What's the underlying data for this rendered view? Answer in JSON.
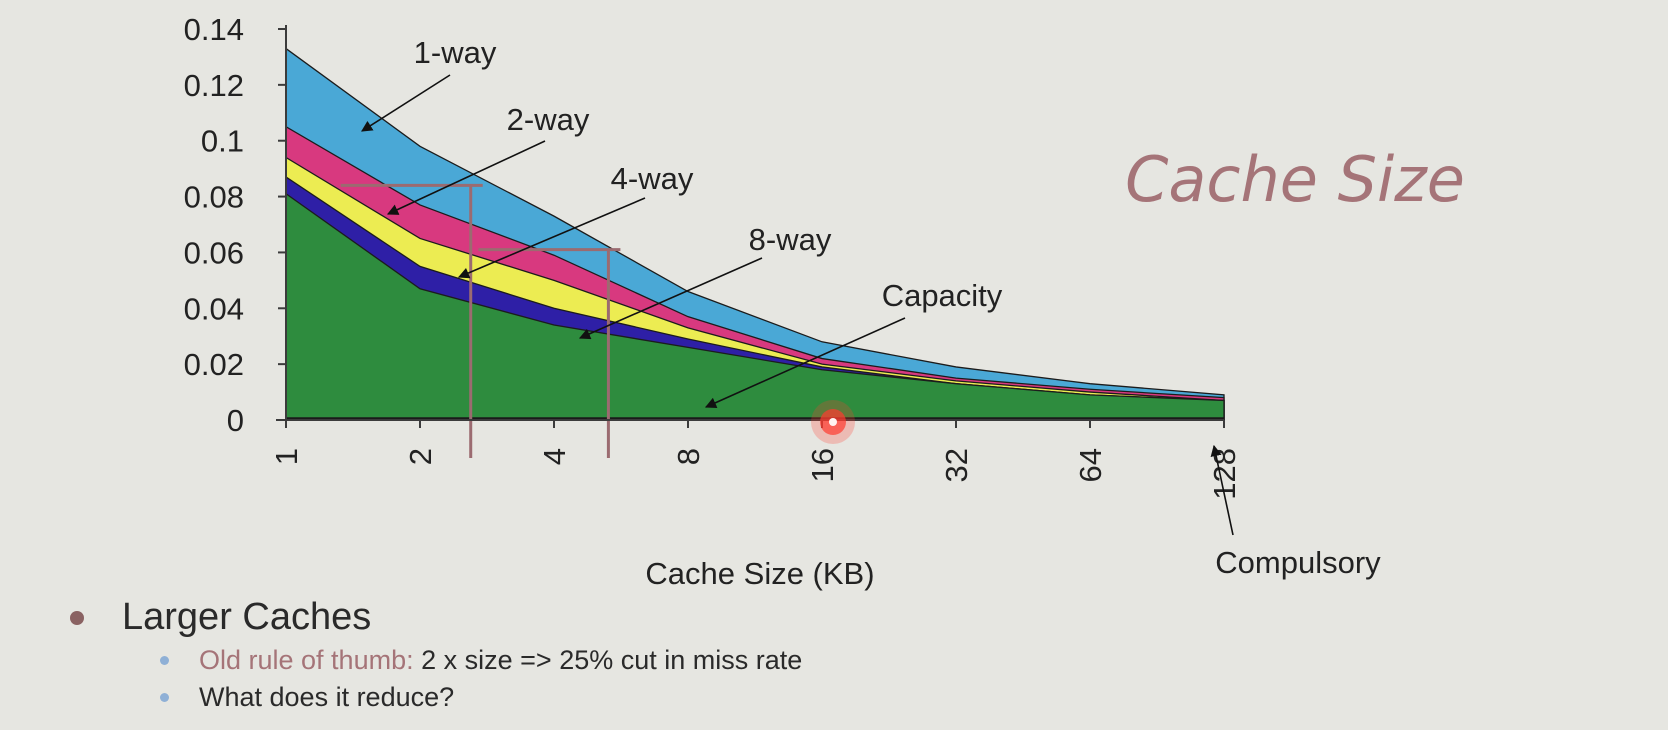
{
  "slide": {
    "title": "Cache Size",
    "bullet_main": "Larger Caches",
    "sub1_lead": "Old rule of thumb:",
    "sub1_rest": "2 x size => 25% cut in miss rate",
    "sub2": "What does it reduce?"
  },
  "colors": {
    "background": "#e6e6e1",
    "title": "#a57478",
    "one_way": "#4aa8d6",
    "two_way": "#d8397f",
    "four_way": "#ecec52",
    "eight_way": "#2e1fa6",
    "capacity": "#2e8c3e",
    "compulsory": "#1a1a1a",
    "guide_lines": "#9b6b70",
    "pointer": "#ff3b2f"
  },
  "chart_data": {
    "type": "area",
    "xlabel": "Cache Size (KB)",
    "ylabel": "",
    "x": [
      1,
      2,
      4,
      8,
      16,
      32,
      64,
      128
    ],
    "x_tick_labels": [
      "1",
      "2",
      "4",
      "8",
      "16",
      "32",
      "64",
      "128"
    ],
    "x_scale": "log2",
    "ylim": [
      0,
      0.14
    ],
    "y_ticks": [
      0,
      0.02,
      0.04,
      0.06,
      0.08,
      0.1,
      0.12,
      0.14
    ],
    "y_tick_labels": [
      "0",
      "0.02",
      "0.04",
      "0.06",
      "0.08",
      "0.1",
      "0.12",
      "0.14"
    ],
    "grid": false,
    "series": [
      {
        "name": "1-way",
        "values": [
          0.133,
          0.098,
          0.073,
          0.046,
          0.028,
          0.019,
          0.013,
          0.009
        ]
      },
      {
        "name": "2-way",
        "values": [
          0.105,
          0.077,
          0.059,
          0.037,
          0.022,
          0.015,
          0.011,
          0.008
        ]
      },
      {
        "name": "4-way",
        "values": [
          0.094,
          0.065,
          0.05,
          0.033,
          0.02,
          0.014,
          0.01,
          0.007
        ]
      },
      {
        "name": "8-way",
        "values": [
          0.087,
          0.055,
          0.04,
          0.029,
          0.019,
          0.013,
          0.009,
          0.007
        ]
      },
      {
        "name": "Capacity",
        "values": [
          0.081,
          0.047,
          0.034,
          0.026,
          0.018,
          0.013,
          0.009,
          0.007
        ]
      },
      {
        "name": "Compulsory",
        "values": [
          0.001,
          0.001,
          0.001,
          0.001,
          0.001,
          0.001,
          0.001,
          0.001
        ]
      }
    ],
    "guides": [
      {
        "x": 2.6,
        "y": 0.084
      },
      {
        "x": 5.3,
        "y": 0.061
      }
    ]
  }
}
